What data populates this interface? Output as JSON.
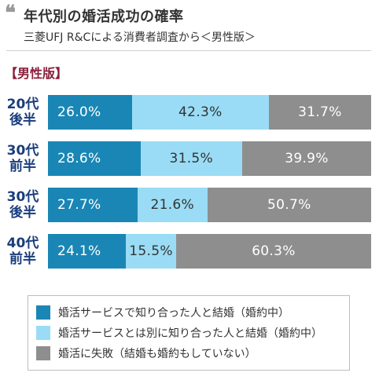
{
  "header": {
    "title": "年代別の婚活成功の確率",
    "subtitle": "三菱UFJ R&Cによる消費者調査から＜男性版＞",
    "section_label": "【男性版】"
  },
  "chart_data": {
    "type": "bar",
    "orientation": "horizontal",
    "stacked": true,
    "normalized_percent": true,
    "categories": [
      [
        "20代",
        "後半"
      ],
      [
        "30代",
        "前半"
      ],
      [
        "30代",
        "後半"
      ],
      [
        "40代",
        "前半"
      ]
    ],
    "series": [
      {
        "name": "婚活サービスで知り合った人と結婚（婚約中）",
        "color": "#1a86b5",
        "values": [
          26.0,
          28.6,
          27.7,
          24.1
        ]
      },
      {
        "name": "婚活サービスとは別に知り合った人と結婚（婚約中）",
        "color": "#9adcf5",
        "values": [
          42.3,
          31.5,
          21.6,
          15.5
        ]
      },
      {
        "name": "婚活に失敗（結婚も婚約もしていない）",
        "color": "#8e8e8e",
        "values": [
          31.7,
          39.9,
          50.7,
          60.3
        ]
      }
    ],
    "value_suffix": "%",
    "legend_position": "bottom",
    "xlim": [
      0,
      100
    ]
  }
}
